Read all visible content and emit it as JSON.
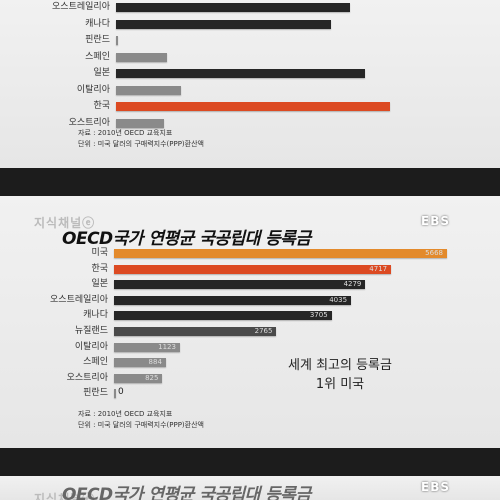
{
  "chart_data": [
    {
      "type": "bar",
      "orientation": "horizontal",
      "categories": [
        "오스트레일리아",
        "캐나다",
        "핀란드",
        "스페인",
        "일본",
        "이탈리아",
        "한국",
        "오스트리아"
      ],
      "values": [
        4035,
        3705,
        0,
        884,
        4279,
        1123,
        4717,
        825
      ],
      "highlight": "한국",
      "source": [
        "자료 : 2010년 OECD 교육지표",
        "단위 : 미국 달러의 구매력지수(PPP)환산액"
      ]
    },
    {
      "type": "bar",
      "orientation": "horizontal",
      "title": "OECD국가 연평균 국공립대 등록금",
      "categories": [
        "미국",
        "한국",
        "일본",
        "오스트레일리아",
        "캐나다",
        "뉴질랜드",
        "이탈리아",
        "스페인",
        "오스트리아",
        "핀란드"
      ],
      "values": [
        5668,
        4717,
        4279,
        4035,
        3705,
        2765,
        1123,
        884,
        825,
        0
      ],
      "value_labels": [
        "5668",
        "4717",
        "4279",
        "4035",
        "3705",
        "2765",
        "1123",
        "884",
        "825",
        "0"
      ],
      "annotation": [
        "세계 최고의 등록금",
        "1위 미국"
      ],
      "source": [
        "자료 : 2010년 OECD 교육지표",
        "단위 : 미국 달러의 구매력지수(PPP)환산액"
      ]
    }
  ],
  "logo": "EBS",
  "watermark": "지식채널ⓔ",
  "next_title_partial": "OECD국가 연평균 국공립대 등록금",
  "colors": {
    "us": "#e38a2c",
    "korea": "#dc4a22",
    "dark": "#262626",
    "light": "#8a8a8a",
    "mid": "#4a4a4a"
  }
}
